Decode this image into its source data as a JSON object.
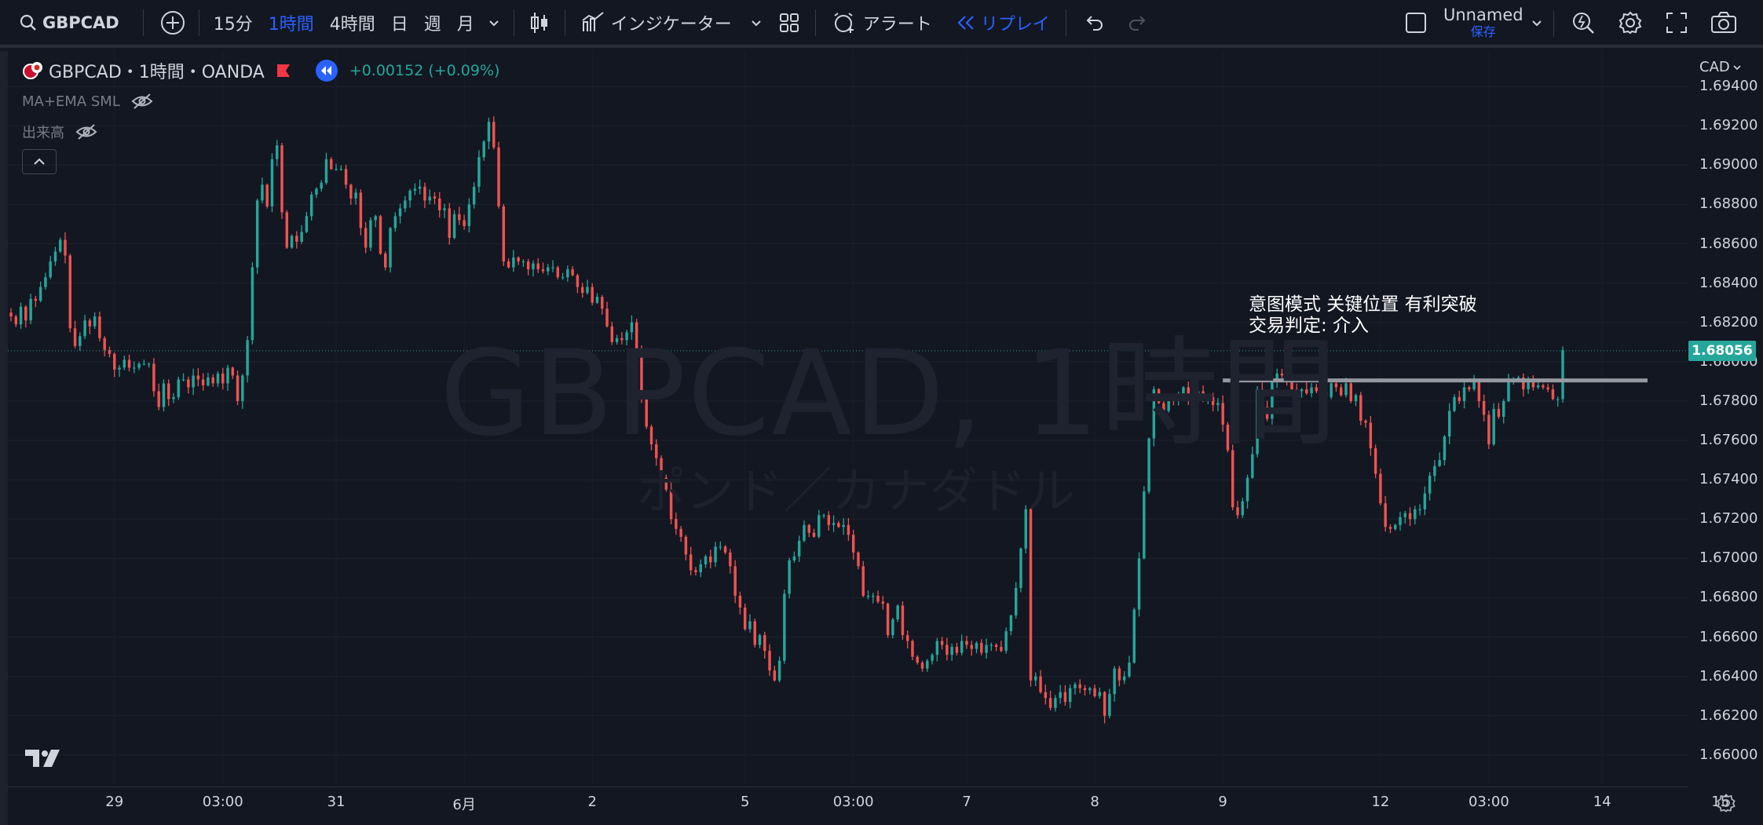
{
  "toolbar": {
    "symbol": "GBPCAD",
    "intervals": [
      "15分",
      "1時間",
      "4時間",
      "日",
      "週",
      "月"
    ],
    "active_interval": "1時間",
    "indicators_label": "インジケーター",
    "alert_label": "アラート",
    "replay_label": "リプレイ",
    "layout_name": "Unnamed",
    "save_label": "保存"
  },
  "legend": {
    "title": "GBPCAD・1時間・OANDA",
    "change": "+0.00152 (+0.09%)",
    "indicator1": "MA+EMA SML",
    "indicator2": "出来高"
  },
  "watermark": {
    "line1": "GBPCAD, 1時間",
    "line2": "ポンド／カナダドル"
  },
  "annotation": {
    "line1": "意图模式 关键位置 有利突破",
    "line2": "交易判定: 介入"
  },
  "price_axis": {
    "currency": "CAD",
    "current_price": "1.68056",
    "current_price_value": 1.68056,
    "key_level": 1.67905
  },
  "chart_data": {
    "type": "candlestick",
    "title": "",
    "y_ticks": [
      "1.69400",
      "1.69200",
      "1.69000",
      "1.68800",
      "1.68600",
      "1.68400",
      "1.68200",
      "1.68000",
      "1.67800",
      "1.67600",
      "1.67400",
      "1.67200",
      "1.67000",
      "1.66800",
      "1.66600",
      "1.66400",
      "1.66200",
      "1.66000"
    ],
    "ylim": [
      1.6584,
      1.6958
    ],
    "x_ticks": [
      "29",
      "03:00",
      "31",
      "6月",
      "2",
      "5",
      "03:00",
      "7",
      "8",
      "9",
      "12",
      "03:00",
      "14",
      "15"
    ],
    "closes": [
      1.6823,
      1.6819,
      1.6828,
      1.6821,
      1.6832,
      1.6831,
      1.6838,
      1.6843,
      1.6851,
      1.6856,
      1.6862,
      1.6854,
      1.6817,
      1.6808,
      1.6813,
      1.6821,
      1.6818,
      1.6823,
      1.6812,
      1.6806,
      1.6804,
      1.6796,
      1.6797,
      1.6801,
      1.6797,
      1.6797,
      1.6799,
      1.6799,
      1.6799,
      1.6785,
      1.6777,
      1.6789,
      1.6781,
      1.6782,
      1.6791,
      1.6791,
      1.6787,
      1.6793,
      1.6791,
      1.6788,
      1.6792,
      1.6789,
      1.6794,
      1.6789,
      1.6797,
      1.6793,
      1.678,
      1.6793,
      1.6811,
      1.6848,
      1.6882,
      1.689,
      1.6879,
      1.6903,
      1.691,
      1.6876,
      1.6858,
      1.6864,
      1.6861,
      1.6866,
      1.6874,
      1.6885,
      1.6888,
      1.6891,
      1.6903,
      1.6898,
      1.6898,
      1.6898,
      1.689,
      1.6883,
      1.6886,
      1.6868,
      1.6858,
      1.6872,
      1.6874,
      1.6855,
      1.6848,
      1.6868,
      1.6874,
      1.6878,
      1.6882,
      1.6887,
      1.6888,
      1.6889,
      1.6882,
      1.6884,
      1.6883,
      1.6877,
      1.6878,
      1.6863,
      1.6875,
      1.6872,
      1.6869,
      1.688,
      1.6889,
      1.6904,
      1.6912,
      1.6922,
      1.6909,
      1.6879,
      1.6851,
      1.6848,
      1.6853,
      1.6851,
      1.6851,
      1.6847,
      1.685,
      1.6847,
      1.6846,
      1.6848,
      1.6848,
      1.6843,
      1.6843,
      1.6847,
      1.6844,
      1.6838,
      1.6835,
      1.6838,
      1.683,
      1.6833,
      1.6827,
      1.6818,
      1.681,
      1.6812,
      1.6811,
      1.6815,
      1.682,
      1.6805,
      1.6781,
      1.6767,
      1.6758,
      1.6751,
      1.6741,
      1.6735,
      1.672,
      1.6715,
      1.6711,
      1.6702,
      1.6694,
      1.6693,
      1.6697,
      1.6701,
      1.6698,
      1.6706,
      1.6706,
      1.6703,
      1.6696,
      1.6681,
      1.6675,
      1.6664,
      1.6668,
      1.6656,
      1.6661,
      1.6653,
      1.6643,
      1.6638,
      1.6648,
      1.6682,
      1.6699,
      1.6701,
      1.6709,
      1.6717,
      1.6713,
      1.6711,
      1.6722,
      1.6722,
      1.6717,
      1.6718,
      1.6716,
      1.6717,
      1.6712,
      1.6703,
      1.6696,
      1.6681,
      1.6681,
      1.6681,
      1.6678,
      1.6677,
      1.6661,
      1.6669,
      1.6676,
      1.6661,
      1.6658,
      1.665,
      1.6647,
      1.6644,
      1.6648,
      1.6651,
      1.6658,
      1.6656,
      1.6651,
      1.6655,
      1.6652,
      1.6658,
      1.6656,
      1.6654,
      1.6657,
      1.6652,
      1.6656,
      1.6656,
      1.6655,
      1.6653,
      1.6663,
      1.6671,
      1.6685,
      1.6705,
      1.6725,
      1.6638,
      1.664,
      1.6632,
      1.6629,
      1.6624,
      1.6629,
      1.6632,
      1.6627,
      1.6634,
      1.6636,
      1.6634,
      1.6633,
      1.6634,
      1.663,
      1.6632,
      1.662,
      1.6631,
      1.6644,
      1.6638,
      1.664,
      1.6647,
      1.6674,
      1.67,
      1.6734,
      1.6761,
      1.6786,
      1.6779,
      1.6775,
      1.6781,
      1.678,
      1.6784,
      1.6787,
      1.6781,
      1.6782,
      1.6785,
      1.678,
      1.6782,
      1.6778,
      1.6779,
      1.6768,
      1.6755,
      1.6726,
      1.6722,
      1.6729,
      1.6741,
      1.6753,
      1.6786,
      1.6777,
      1.6771,
      1.679,
      1.6794,
      1.6793,
      1.6791,
      1.6786,
      1.6785,
      1.6786,
      1.6784,
      1.6787,
      1.6785,
      1.6785,
      1.6782,
      1.6789,
      1.6787,
      1.6783,
      1.6789,
      1.678,
      1.6783,
      1.677,
      1.6769,
      1.6756,
      1.6743,
      1.6728,
      1.6716,
      1.6715,
      1.6717,
      1.6721,
      1.6723,
      1.672,
      1.6725,
      1.6725,
      1.6733,
      1.6742,
      1.6747,
      1.675,
      1.6762,
      1.6775,
      1.6782,
      1.678,
      1.6787,
      1.6786,
      1.679,
      1.678,
      1.6773,
      1.6758,
      1.6776,
      1.6772,
      1.678,
      1.6791,
      1.6791,
      1.6792,
      1.6786,
      1.679,
      1.6787,
      1.6788,
      1.6787,
      1.6786,
      1.6781,
      1.6781,
      1.6806
    ]
  }
}
